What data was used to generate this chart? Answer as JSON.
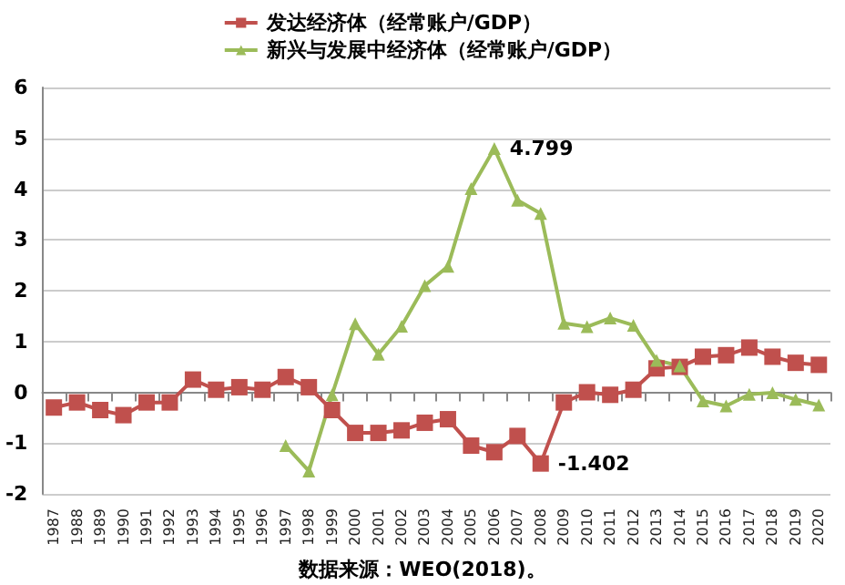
{
  "chart_data": {
    "type": "line",
    "categories": [
      "1987",
      "1988",
      "1989",
      "1990",
      "1991",
      "1992",
      "1993",
      "1994",
      "1995",
      "1996",
      "1997",
      "1998",
      "1999",
      "2000",
      "2001",
      "2002",
      "2003",
      "2004",
      "2005",
      "2006",
      "2007",
      "2008",
      "2009",
      "2010",
      "2011",
      "2012",
      "2013",
      "2014",
      "2015",
      "2016",
      "2017",
      "2018",
      "2019",
      "2020"
    ],
    "series": [
      {
        "name": "发达经济体（经常账户/GDP）",
        "color": "#c0504d",
        "marker": "square",
        "values": [
          -0.3,
          -0.2,
          -0.35,
          -0.45,
          -0.2,
          -0.2,
          0.25,
          0.05,
          0.1,
          0.05,
          0.3,
          0.1,
          -0.35,
          -0.8,
          -0.8,
          -0.75,
          -0.6,
          -0.53,
          -1.05,
          -1.18,
          -0.86,
          -1.402,
          -0.2,
          0,
          -0.05,
          0.05,
          0.47,
          0.5,
          0.7,
          0.73,
          0.88,
          0.7,
          0.58,
          0.54
        ],
        "value_labels": [
          null,
          null,
          null,
          null,
          null,
          null,
          null,
          null,
          null,
          null,
          null,
          null,
          null,
          null,
          null,
          null,
          null,
          null,
          null,
          null,
          null,
          "-1.402",
          null,
          null,
          null,
          null,
          null,
          null,
          null,
          null,
          null,
          null,
          null,
          null
        ]
      },
      {
        "name": "新兴与发展中经济体（经常账户/GDP）",
        "color": "#9bbb59",
        "marker": "triangle",
        "values": [
          null,
          null,
          null,
          null,
          null,
          null,
          null,
          null,
          null,
          null,
          -1.05,
          -1.55,
          -0.05,
          1.35,
          0.75,
          1.3,
          2.1,
          2.48,
          4.01,
          4.799,
          3.78,
          3.52,
          1.36,
          1.29,
          1.46,
          1.32,
          0.63,
          0.52,
          -0.17,
          -0.27,
          -0.04,
          -0.01,
          -0.14,
          -0.25
        ],
        "value_labels": [
          null,
          null,
          null,
          null,
          null,
          null,
          null,
          null,
          null,
          null,
          null,
          null,
          null,
          null,
          null,
          null,
          null,
          null,
          null,
          "4.799",
          null,
          null,
          null,
          null,
          null,
          null,
          null,
          null,
          null,
          null,
          null,
          null,
          null,
          null
        ]
      }
    ],
    "ylim": [
      -2,
      6
    ],
    "yticks": [
      -2,
      -1,
      0,
      1,
      2,
      3,
      4,
      5,
      6
    ],
    "grid": "y",
    "legend": "top",
    "line_style": "solid",
    "annotations": [
      "数据来源：WEO(2018)。"
    ]
  }
}
